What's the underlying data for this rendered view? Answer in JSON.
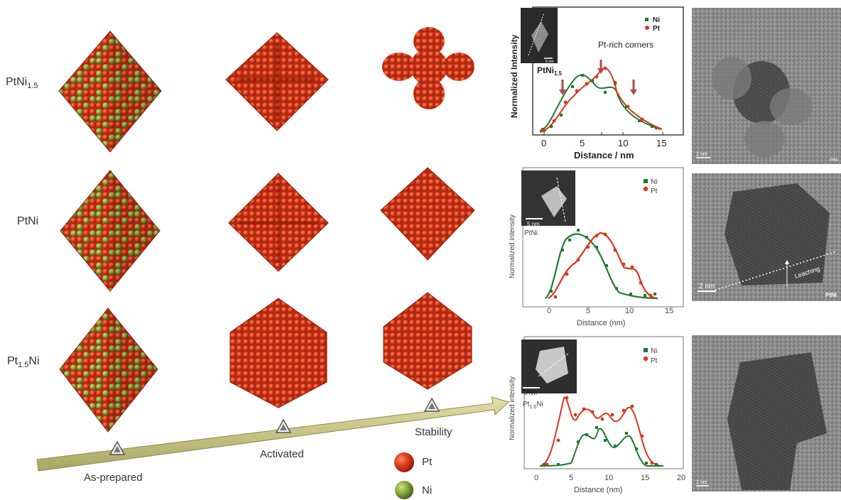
{
  "rows": [
    {
      "label": "PtNi",
      "sub": "1.5",
      "pre": ""
    },
    {
      "label": "PtNi",
      "sub": "",
      "pre": ""
    },
    {
      "label": "Ni",
      "sub": "1.5",
      "pre": "Pt"
    }
  ],
  "stages": [
    "As-prepared",
    "Activated",
    "Stability"
  ],
  "legend": [
    {
      "label": "Pt",
      "color": "#d9361e"
    },
    {
      "label": "Ni",
      "color": "#7fa23a"
    }
  ],
  "colors": {
    "pt": "#d9361e",
    "ni": "#7fa23a",
    "ni_line": "#1e7a2e",
    "arrow": "#c9c58a"
  },
  "profiles": [
    {
      "ylabel": "Normalized Intensity",
      "xlabel": "Distance / nm",
      "xticks": [
        "0",
        "5",
        "10",
        "15"
      ],
      "legend": [
        "Ni",
        "Pt"
      ],
      "annotation": "Pt-rich corners",
      "sample_main": "PtNi",
      "sample_sub": "1.5",
      "sample_post": "",
      "scale": "5 nm",
      "tem_scale": "2 nm",
      "tem_tag": "PtNi"
    },
    {
      "ylabel": "Normalized intensity",
      "xlabel": "Distance (nm)",
      "xticks": [
        "0",
        "5",
        "10",
        "15"
      ],
      "legend": [
        "Ni",
        "Pt"
      ],
      "annotation": "",
      "sample_main": "PtNi",
      "sample_sub": "",
      "sample_post": "",
      "scale": "5 nm",
      "tem_scale": "2 nm",
      "tem_tag": "PtNi",
      "tem_note": "Leaching"
    },
    {
      "ylabel": "Normalized intensity",
      "xlabel": "Distance (nm)",
      "xticks": [
        "0",
        "5",
        "10",
        "15",
        "20"
      ],
      "legend": [
        "Ni",
        "Pt"
      ],
      "annotation": "",
      "sample_main": "Pt",
      "sample_sub": "1.5",
      "sample_post": "Ni",
      "scale": "5 nm",
      "tem_scale": "2 nm",
      "tem_tag": ""
    }
  ]
}
